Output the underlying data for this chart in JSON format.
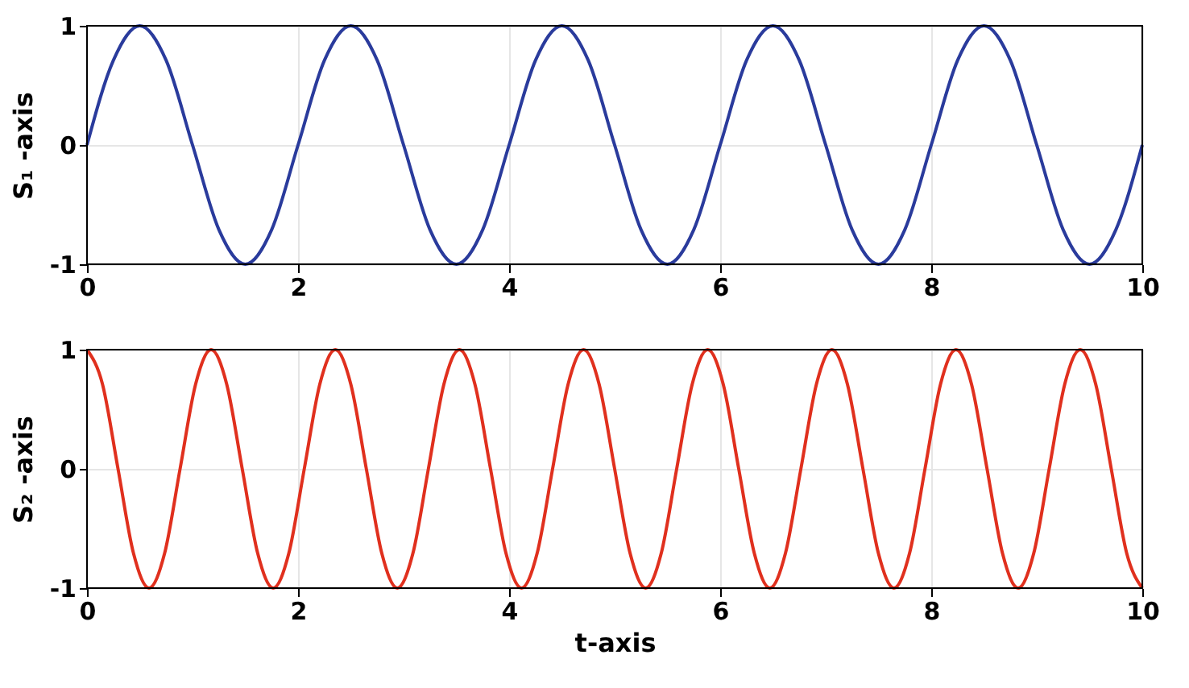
{
  "chart_data": [
    {
      "type": "line",
      "ylabel": "S₁ -axis",
      "xlim": [
        0,
        10
      ],
      "xticks": [
        0,
        2,
        4,
        6,
        8,
        10
      ],
      "ylim": [
        -1,
        1
      ],
      "yticks": [
        -1,
        0,
        1
      ],
      "grid": true,
      "line_style": "solid",
      "series": [
        {
          "color": "#2a3b9c",
          "x": [
            0,
            0.25,
            0.5,
            0.75,
            1,
            1.25,
            1.5,
            1.75,
            2,
            2.25,
            2.5,
            2.75,
            3,
            3.25,
            3.5,
            3.75,
            4,
            4.25,
            4.5,
            4.75,
            5,
            5.25,
            5.5,
            5.75,
            6,
            6.25,
            6.5,
            6.75,
            7,
            7.25,
            7.5,
            7.75,
            8,
            8.25,
            8.5,
            8.75,
            9,
            9.25,
            9.5,
            9.75,
            10
          ],
          "values": [
            0,
            0.71,
            1,
            0.71,
            0,
            -0.71,
            -1,
            -0.71,
            0,
            0.71,
            1,
            0.71,
            0,
            -0.71,
            -1,
            -0.71,
            0,
            0.71,
            1,
            0.71,
            0,
            -0.71,
            -1,
            -0.71,
            0,
            0.71,
            1,
            0.71,
            0,
            -0.71,
            -1,
            -0.71,
            0,
            0.71,
            1,
            0.71,
            0,
            -0.71,
            -1,
            -0.71,
            0
          ]
        }
      ]
    },
    {
      "type": "line",
      "ylabel": "S₂ -axis",
      "xlabel": "t-axis",
      "xlim": [
        0,
        10
      ],
      "xticks": [
        0,
        2,
        4,
        6,
        8,
        10
      ],
      "ylim": [
        -1,
        1
      ],
      "yticks": [
        -1,
        0,
        1
      ],
      "grid": true,
      "line_style": "solid",
      "series": [
        {
          "color": "#e0301e",
          "x": [
            0,
            0.147,
            0.294,
            0.441,
            0.588,
            0.735,
            0.882,
            1.029,
            1.176,
            1.324,
            1.471,
            1.618,
            1.765,
            1.912,
            2.059,
            2.206,
            2.353,
            2.5,
            2.647,
            2.794,
            2.941,
            3.088,
            3.235,
            3.382,
            3.529,
            3.676,
            3.824,
            3.971,
            4.118,
            4.265,
            4.412,
            4.559,
            4.706,
            4.853,
            5,
            5.147,
            5.294,
            5.441,
            5.588,
            5.735,
            5.882,
            6.029,
            6.176,
            6.324,
            6.471,
            6.618,
            6.765,
            6.912,
            7.059,
            7.206,
            7.353,
            7.5,
            7.647,
            7.794,
            7.941,
            8.088,
            8.235,
            8.382,
            8.529,
            8.676,
            8.824,
            8.971,
            9.118,
            9.265,
            9.412,
            9.559,
            9.706,
            9.853,
            10
          ],
          "values": [
            1,
            0.71,
            0,
            -0.71,
            -1,
            -0.71,
            0,
            0.71,
            1,
            0.71,
            0,
            -0.71,
            -1,
            -0.71,
            0,
            0.71,
            1,
            0.71,
            0,
            -0.71,
            -1,
            -0.71,
            0,
            0.71,
            1,
            0.71,
            0,
            -0.71,
            -1,
            -0.71,
            0,
            0.71,
            1,
            0.71,
            0,
            -0.71,
            -1,
            -0.71,
            0,
            0.71,
            1,
            0.71,
            0,
            -0.71,
            -1,
            -0.71,
            0,
            0.71,
            1,
            0.71,
            0,
            -0.71,
            -1,
            -0.71,
            0,
            0.71,
            1,
            0.71,
            0,
            -0.71,
            -1,
            -0.71,
            0,
            0.71,
            1,
            0.71,
            0,
            -0.71,
            -1
          ]
        }
      ]
    }
  ]
}
